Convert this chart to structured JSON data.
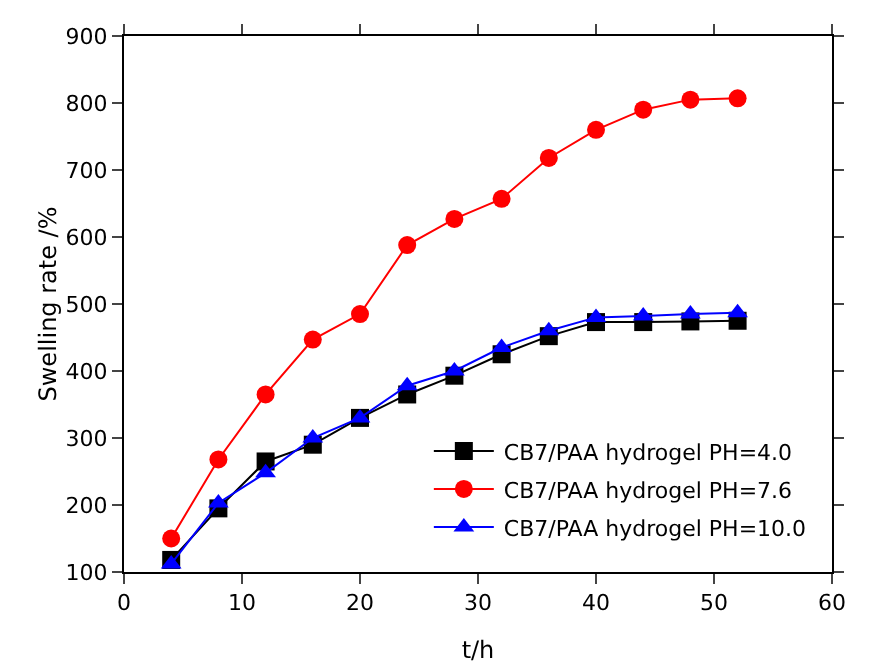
{
  "chart_data": {
    "type": "line",
    "xlabel": "t/h",
    "ylabel": "Swelling rate /%",
    "x": [
      4,
      8,
      12,
      16,
      20,
      24,
      28,
      32,
      36,
      40,
      44,
      48,
      52
    ],
    "series": [
      {
        "name": "CB7/PAA hydrogel PH=4.0",
        "color": "#000000",
        "marker": "square",
        "values": [
          118,
          195,
          265,
          290,
          330,
          365,
          393,
          425,
          452,
          473,
          473,
          474,
          475
        ]
      },
      {
        "name": "CB7/PAA hydrogel PH=7.6",
        "color": "#ff0000",
        "marker": "circle",
        "values": [
          150,
          268,
          365,
          447,
          485,
          588,
          627,
          657,
          718,
          760,
          790,
          805,
          807
        ]
      },
      {
        "name": "CB7/PAA hydrogel PH=10.0",
        "color": "#0000ff",
        "marker": "triangle",
        "values": [
          112,
          203,
          248,
          300,
          330,
          378,
          400,
          435,
          460,
          480,
          482,
          485,
          487
        ]
      }
    ],
    "xlim": [
      0,
      60
    ],
    "xticks": [
      0,
      10,
      20,
      30,
      40,
      50,
      60
    ],
    "ylim": [
      100,
      900
    ],
    "yticks": [
      100,
      200,
      300,
      400,
      500,
      600,
      700,
      800,
      900
    ],
    "grid": false,
    "legend": "bottom right",
    "line_style": "solid"
  }
}
